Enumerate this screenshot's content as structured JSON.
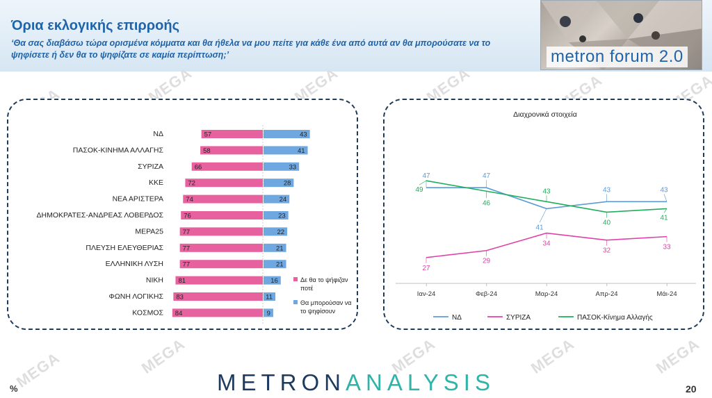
{
  "header": {
    "title": "Όρια εκλογικής επιρροής",
    "subtitle": "‘Θα σας διαβάσω τώρα ορισμένα κόμματα και θα ήθελα να μου πείτε για κάθε ένα από αυτά αν θα μπορούσατε να το ψηφίσετε ή δεν θα το ψηφίζατε σε καμία περίπτωση;’",
    "badge": "metron forum 2.0"
  },
  "watermark": "MEGA",
  "footer": {
    "brand_left": "METRON",
    "brand_right": "ANALYSIS",
    "unit": "%",
    "page": "20"
  },
  "chart_data": [
    {
      "type": "bar",
      "orientation": "horizontal-diverging",
      "categories": [
        "ΝΔ",
        "ΠΑΣΟΚ-ΚΙΝΗΜΑ ΑΛΛΑΓΗΣ",
        "ΣΥΡΙΖΑ",
        "ΚΚΕ",
        "ΝΕΑ ΑΡΙΣΤΕΡΑ",
        "ΔΗΜΟΚΡΑΤΕΣ-ΑΝΔΡΕΑΣ ΛΟΒΕΡΔΟΣ",
        "ΜΕΡΑ25",
        "ΠΛΕΥΣΗ ΕΛΕΥΘΕΡΙΑΣ",
        "ΕΛΛΗΝΙΚΗ ΛΥΣΗ",
        "ΝΙΚΗ",
        "ΦΩΝΗ ΛΟΓΙΚΗΣ",
        "ΚΟΣΜΟΣ"
      ],
      "series": [
        {
          "name": "Δε θα το ψήφιζαν ποτέ",
          "color": "#e8619f",
          "values": [
            57,
            58,
            66,
            72,
            74,
            76,
            77,
            77,
            77,
            81,
            83,
            84
          ]
        },
        {
          "name": "Θα μπορούσαν να το ψηφίσουν",
          "color": "#6fa8e0",
          "values": [
            43,
            41,
            33,
            28,
            24,
            23,
            22,
            21,
            21,
            16,
            11,
            9
          ]
        }
      ],
      "legend_position": "right"
    },
    {
      "type": "line",
      "title": "Διαχρονικά στοιχεία",
      "x": [
        "Ιαν-24",
        "Φεβ-24",
        "Μαρ-24",
        "Απρ-24",
        "Μάι-24"
      ],
      "series": [
        {
          "name": "ΝΔ",
          "color": "#5b9bd5",
          "values": [
            47,
            47,
            41,
            43,
            43
          ]
        },
        {
          "name": "ΣΥΡΙΖΑ",
          "color": "#e040a8",
          "values": [
            27,
            29,
            34,
            32,
            33
          ]
        },
        {
          "name": "ΠΑΣΟΚ-Κίνημα Αλλαγής",
          "color": "#1fae5b",
          "values": [
            49,
            46,
            43,
            40,
            41
          ]
        }
      ],
      "ylim": [
        20,
        55
      ],
      "legend_position": "bottom",
      "grid": false
    }
  ]
}
